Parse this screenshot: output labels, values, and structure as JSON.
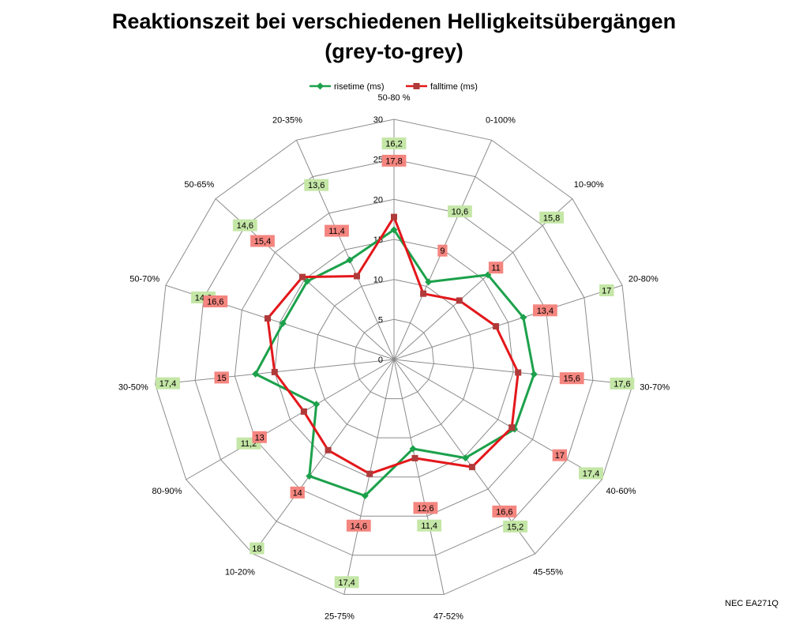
{
  "chart_data": {
    "type": "radar",
    "title": [
      "Reaktionszeit bei verschiedenen Helligkeitsübergängen",
      "(grey-to-grey)"
    ],
    "categories": [
      "50-80 %",
      "0-100%",
      "10-90%",
      "20-80%",
      "30-70%",
      "40-60%",
      "45-55%",
      "47-52%",
      "25-75%",
      "10-20%",
      "80-90%",
      "30-50%",
      "50-70%",
      "50-65%",
      "20-35%"
    ],
    "rlim": [
      0,
      30
    ],
    "ticks": [
      "0",
      "5",
      "10",
      "15",
      "20",
      "25",
      "30"
    ],
    "grid": true,
    "legend": "top",
    "series": [
      {
        "name": "risetime (ms)",
        "color": "#1ca14b",
        "label_bg": "#c4e6a6",
        "values": [
          16.2,
          10.6,
          15.8,
          17,
          17.6,
          17.4,
          15.2,
          11.4,
          17.4,
          18,
          11.2,
          17.4,
          14.6,
          14.6,
          13.6
        ],
        "labels": [
          "16,2",
          "10,6",
          "15,8",
          "17",
          "17,6",
          "17,4",
          "15,2",
          "11,4",
          "17,4",
          "18",
          "11,2",
          "17,4",
          "14,6",
          "14,6",
          "13,6"
        ]
      },
      {
        "name": "falltime (ms)",
        "color": "#e3171b",
        "label_bg": "#f4857f",
        "values": [
          17.8,
          9,
          11,
          13.4,
          15.6,
          17,
          16.6,
          12.6,
          14.6,
          14,
          13,
          15,
          16.6,
          15.4,
          11.4
        ],
        "labels": [
          "17,8",
          "9",
          "11",
          "13,4",
          "15,6",
          "17",
          "16,6",
          "12,6",
          "14,6",
          "14",
          "13",
          "15",
          "16,6",
          "15,4",
          "11,4"
        ]
      }
    ]
  },
  "footer": {
    "credit": "NEC EA271Q"
  }
}
